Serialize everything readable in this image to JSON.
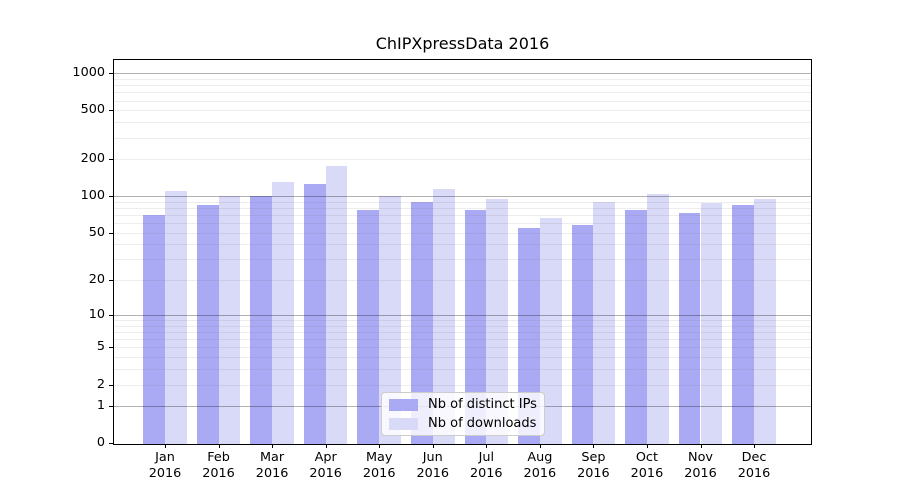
{
  "chart_data": {
    "type": "bar",
    "title": "ChIPXpressData 2016",
    "categories": [
      {
        "month": "Jan",
        "year": "2016"
      },
      {
        "month": "Feb",
        "year": "2016"
      },
      {
        "month": "Mar",
        "year": "2016"
      },
      {
        "month": "Apr",
        "year": "2016"
      },
      {
        "month": "May",
        "year": "2016"
      },
      {
        "month": "Jun",
        "year": "2016"
      },
      {
        "month": "Jul",
        "year": "2016"
      },
      {
        "month": "Aug",
        "year": "2016"
      },
      {
        "month": "Sep",
        "year": "2016"
      },
      {
        "month": "Oct",
        "year": "2016"
      },
      {
        "month": "Nov",
        "year": "2016"
      },
      {
        "month": "Dec",
        "year": "2016"
      }
    ],
    "series": [
      {
        "name": "Nb of distinct IPs",
        "color": "#a9a9f4",
        "values": [
          70,
          85,
          100,
          125,
          77,
          90,
          77,
          55,
          58,
          77,
          73,
          84
        ]
      },
      {
        "name": "Nb of downloads",
        "color": "#d9d9f8",
        "values": [
          110,
          100,
          130,
          175,
          100,
          115,
          94,
          66,
          90,
          104,
          88,
          94
        ]
      }
    ],
    "y_axis": {
      "scale": "log10(value+1)",
      "ticks": [
        1000,
        500,
        200,
        100,
        50,
        20,
        10,
        5,
        2,
        1,
        0
      ],
      "major_gridlines": [
        1,
        10,
        100,
        1000
      ],
      "minor_gridlines": [
        2,
        3,
        4,
        5,
        6,
        7,
        8,
        9,
        20,
        30,
        40,
        50,
        60,
        70,
        80,
        90,
        200,
        300,
        400,
        500,
        600,
        700,
        800,
        900
      ],
      "range": [
        0,
        1120
      ]
    },
    "legend": {
      "position": "inside-bottom-center"
    },
    "colors": {
      "major_grid": "#b3b3b3",
      "minor_grid": "#ececec",
      "spine": "#000000",
      "background": "#ffffff"
    }
  }
}
